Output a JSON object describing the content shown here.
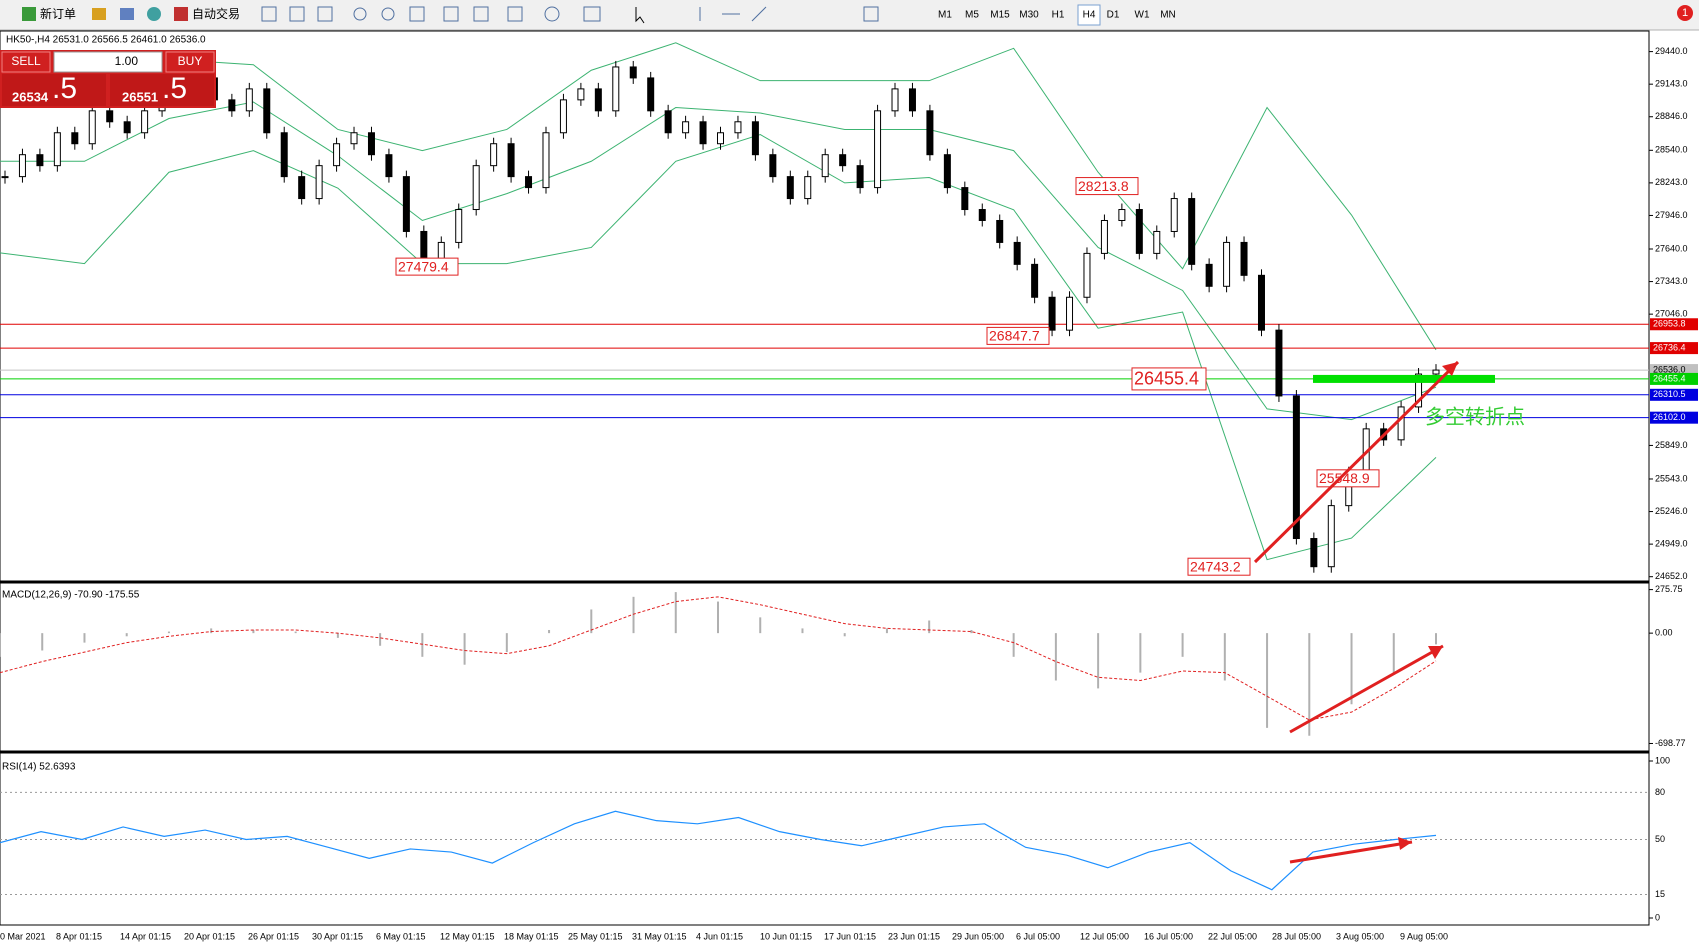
{
  "toolbar": {
    "new_order": "新订单",
    "auto_trading": "自动交易",
    "timeframes": [
      "M1",
      "M5",
      "M15",
      "M30",
      "H1",
      "H4",
      "D1",
      "W1",
      "MN"
    ],
    "active_timeframe": "H4",
    "notifications": "1"
  },
  "trade_panel": {
    "sell": "SELL",
    "buy": "BUY",
    "lot": "1.00",
    "bid_main": "26534",
    "bid_pip": ".5",
    "ask_main": "26551",
    "ask_pip": ".5"
  },
  "chart": {
    "header": "HK50-,H4  26531.0 26566.5 26461.0 26536.0",
    "price_ticks": [
      {
        "value": 29440,
        "label": "29440.0"
      },
      {
        "value": 29143,
        "label": "29143.0"
      },
      {
        "value": 28846,
        "label": "28846.0"
      },
      {
        "value": 28540,
        "label": "28540.0"
      },
      {
        "value": 28243,
        "label": "28243.0"
      },
      {
        "value": 27946,
        "label": "27946.0"
      },
      {
        "value": 27640,
        "label": "27640.0"
      },
      {
        "value": 27343,
        "label": "27343.0"
      },
      {
        "value": 27046,
        "label": "27046.0"
      },
      {
        "value": 25849,
        "label": "25849.0"
      },
      {
        "value": 25543,
        "label": "25543.0"
      },
      {
        "value": 25246,
        "label": "25246.0"
      },
      {
        "value": 24949,
        "label": "24949.0"
      },
      {
        "value": 24652,
        "label": "24652.0"
      }
    ],
    "price_levels": [
      {
        "price": 26953.8,
        "color": "#e00000"
      },
      {
        "price": 26736.4,
        "color": "#e00000"
      },
      {
        "price": {
          "value": 26536,
          "label": "26536.0"
        },
        "color": "#c0c0c0"
      },
      {
        "price": 26455.4,
        "color": "#00d000"
      },
      {
        "price": 26310.5,
        "color": "#0000e0"
      },
      {
        "price": {
          "value": 26102,
          "label": "26102.0"
        },
        "color": "#0000e0"
      }
    ],
    "closes": [
      28300,
      28500,
      28400,
      28700,
      28600,
      28900,
      28800,
      28700,
      28900,
      29000,
      29100,
      29200,
      29000,
      28900,
      29100,
      28700,
      28300,
      28100,
      28400,
      28600,
      28700,
      28500,
      28300,
      27800,
      27500,
      27700,
      28000,
      28400,
      28600,
      28300,
      28200,
      28700,
      29000,
      29100,
      28900,
      29300,
      29200,
      28900,
      28700,
      28800,
      28600,
      28700,
      28800,
      28500,
      28300,
      28100,
      28300,
      28500,
      28400,
      28200,
      28900,
      29100,
      28900,
      28500,
      28200,
      28000,
      27900,
      27700,
      27500,
      27200,
      26900,
      27200,
      27600,
      27900,
      28000,
      27600,
      27800,
      28100,
      27500,
      27300,
      27700,
      27400,
      26900,
      26300,
      25000,
      24743.2,
      25300,
      25600,
      26000,
      25900,
      26200,
      26500,
      26536
    ],
    "bands": {
      "upper": [
        28980,
        29028,
        29370,
        29320,
        28730,
        28537,
        28730,
        29270,
        29520,
        29175,
        29175,
        29175,
        29470,
        28340,
        27460,
        28930,
        27950,
        26720
      ],
      "middle": [
        28440,
        28440,
        28830,
        28980,
        28490,
        27900,
        28145,
        28440,
        28930,
        28880,
        28730,
        28730,
        28537,
        27654,
        27262,
        26182,
        26084,
        26380
      ],
      "lower": [
        27605,
        27507,
        28340,
        28537,
        28195,
        27507,
        27507,
        27654,
        28440,
        28684,
        28243,
        28292,
        27998,
        26918,
        27065,
        24808,
        25004,
        25740
      ]
    },
    "annotations": [
      28213.8,
      27479.4,
      26847.7,
      26455.4,
      25548.9,
      24743.2
    ],
    "note": "多空转折点",
    "dates": [
      "0 Mar 2021",
      "8 Apr 01:15",
      "14 Apr 01:15",
      "20 Apr 01:15",
      "26 Apr 01:15",
      "30 Apr 01:15",
      "6 May 01:15",
      "12 May 01:15",
      "18 May 01:15",
      "25 May 01:15",
      "31 May 01:15",
      "4 Jun 01:15",
      "10 Jun 01:15",
      "17 Jun 01:15",
      "23 Jun 01:15",
      "29 Jun 05:00",
      "6 Jul 05:00",
      "12 Jul 05:00",
      "16 Jul 05:00",
      "22 Jul 05:00",
      "28 Jul 05:00",
      "3 Aug 05:00",
      "9 Aug 05:00"
    ]
  },
  "macd": {
    "label": "MACD(12,26,9) -70.90 -175.55",
    "ticks": [
      275.75,
      {
        "value": 0,
        "label": "0.00"
      },
      -698.77
    ],
    "histogram": [
      -150,
      -110,
      -60,
      -20,
      10,
      30,
      20,
      10,
      -30,
      -80,
      -150,
      -200,
      -120,
      20,
      150,
      230,
      260,
      200,
      100,
      30,
      -20,
      30,
      80,
      20,
      -150,
      -300,
      -350,
      -250,
      -150,
      -300,
      -600,
      -650,
      -450,
      -250,
      -70.9
    ],
    "signal": [
      -250,
      -180,
      -120,
      -60,
      -20,
      10,
      20,
      20,
      0,
      -30,
      -70,
      -110,
      -130,
      -80,
      20,
      120,
      200,
      230,
      180,
      120,
      60,
      30,
      20,
      10,
      -60,
      -180,
      -280,
      -300,
      -240,
      -250,
      -400,
      -550,
      -500,
      -350,
      -175.55
    ]
  },
  "rsi": {
    "label": "RSI(14) 52.6393",
    "ticks": [
      100,
      80,
      50,
      15,
      0
    ],
    "values": [
      48,
      55,
      50,
      58,
      52,
      56,
      50,
      52,
      45,
      38,
      44,
      42,
      35,
      48,
      60,
      68,
      62,
      60,
      64,
      55,
      50,
      46,
      52,
      58,
      60,
      45,
      40,
      32,
      42,
      48,
      30,
      18,
      42,
      47,
      50,
      52.6393
    ]
  }
}
